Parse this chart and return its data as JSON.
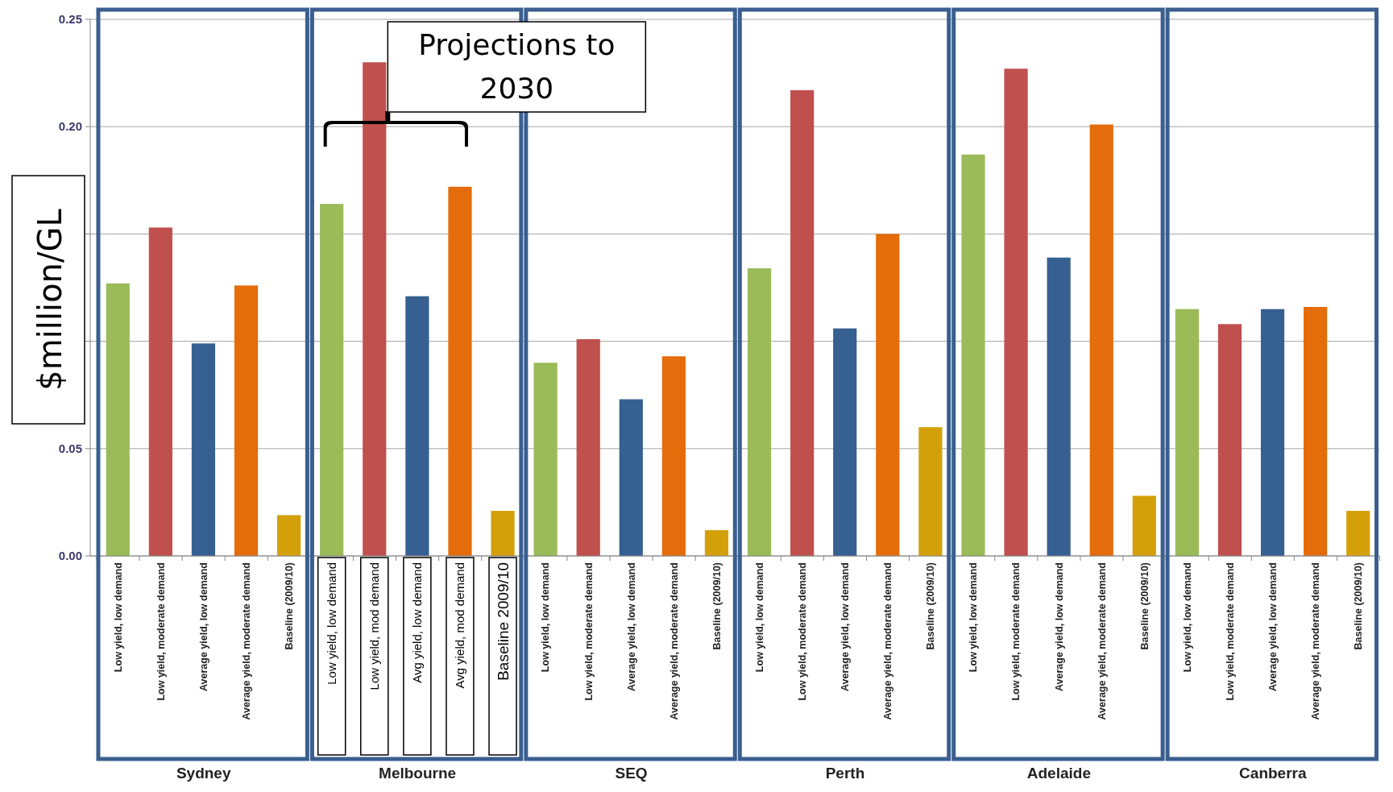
{
  "chart_data": {
    "type": "bar",
    "ylabel": "$million/GL",
    "categories": [
      "Low yield, low demand",
      "Low yield, moderate demand",
      "Average yield, low demand",
      "Average yield, moderate demand",
      "Baseline (2009/10)",
      "Low yield, low demand",
      "Low yield, mod demand",
      "Avg yield, low demand",
      "Avg yield, mod demand",
      "Baseline 2009/10",
      "Low yield, low demand",
      "Low yield, moderate demand",
      "Average yield, low demand",
      "Average yield, moderate demand",
      "Baseline (2009/10)",
      "Low yield, low demand",
      "Low yield, moderate demand",
      "Average yield, low demand",
      "Average yield, moderate demand",
      "Baseline (2009/10)",
      "Low yield, low demand",
      "Low yield, moderate demand",
      "Average yield, low demand",
      "Average yield, moderate demand",
      "Baseline (2009/10)",
      "Low yield, low demand",
      "Low yield, moderate demand",
      "Average yield, low demand",
      "Average yield, moderate demand",
      "Baseline (2009/10)"
    ],
    "values": [
      0.127,
      0.153,
      0.099,
      0.126,
      0.019,
      0.164,
      0.23,
      0.121,
      0.172,
      0.021,
      0.09,
      0.101,
      0.073,
      0.093,
      0.012,
      0.134,
      0.217,
      0.106,
      0.15,
      0.06,
      0.187,
      0.227,
      0.139,
      0.201,
      0.028,
      0.115,
      0.108,
      0.115,
      0.116,
      0.021
    ],
    "colors": [
      "#9bbb59",
      "#c0504d",
      "#376092",
      "#e46c0a",
      "#d4a00a",
      "#9bbb59",
      "#c0504d",
      "#376092",
      "#e46c0a",
      "#d4a00a",
      "#9bbb59",
      "#c0504d",
      "#376092",
      "#e46c0a",
      "#d4a00a",
      "#9bbb59",
      "#c0504d",
      "#376092",
      "#e46c0a",
      "#d4a00a",
      "#9bbb59",
      "#c0504d",
      "#376092",
      "#e46c0a",
      "#d4a00a",
      "#9bbb59",
      "#c0504d",
      "#376092",
      "#e46c0a",
      "#d4a00a"
    ],
    "ylim": [
      0,
      0.25
    ],
    "yticks": [
      {
        "value": 0,
        "label": "0.00"
      },
      {
        "value": 0.05,
        "label": "0.05"
      },
      {
        "value": 0.1,
        "label": null
      },
      {
        "value": 0.15,
        "label": null
      },
      {
        "value": 0.2,
        "label": "0.20"
      },
      {
        "value": 0.25,
        "label": "0.25"
      }
    ],
    "grid": "y",
    "annotations": [
      "Projections to 2030",
      "Sydney",
      "Melbourne",
      "SEQ",
      "Perth",
      "Adelaide",
      "Canberra"
    ]
  }
}
